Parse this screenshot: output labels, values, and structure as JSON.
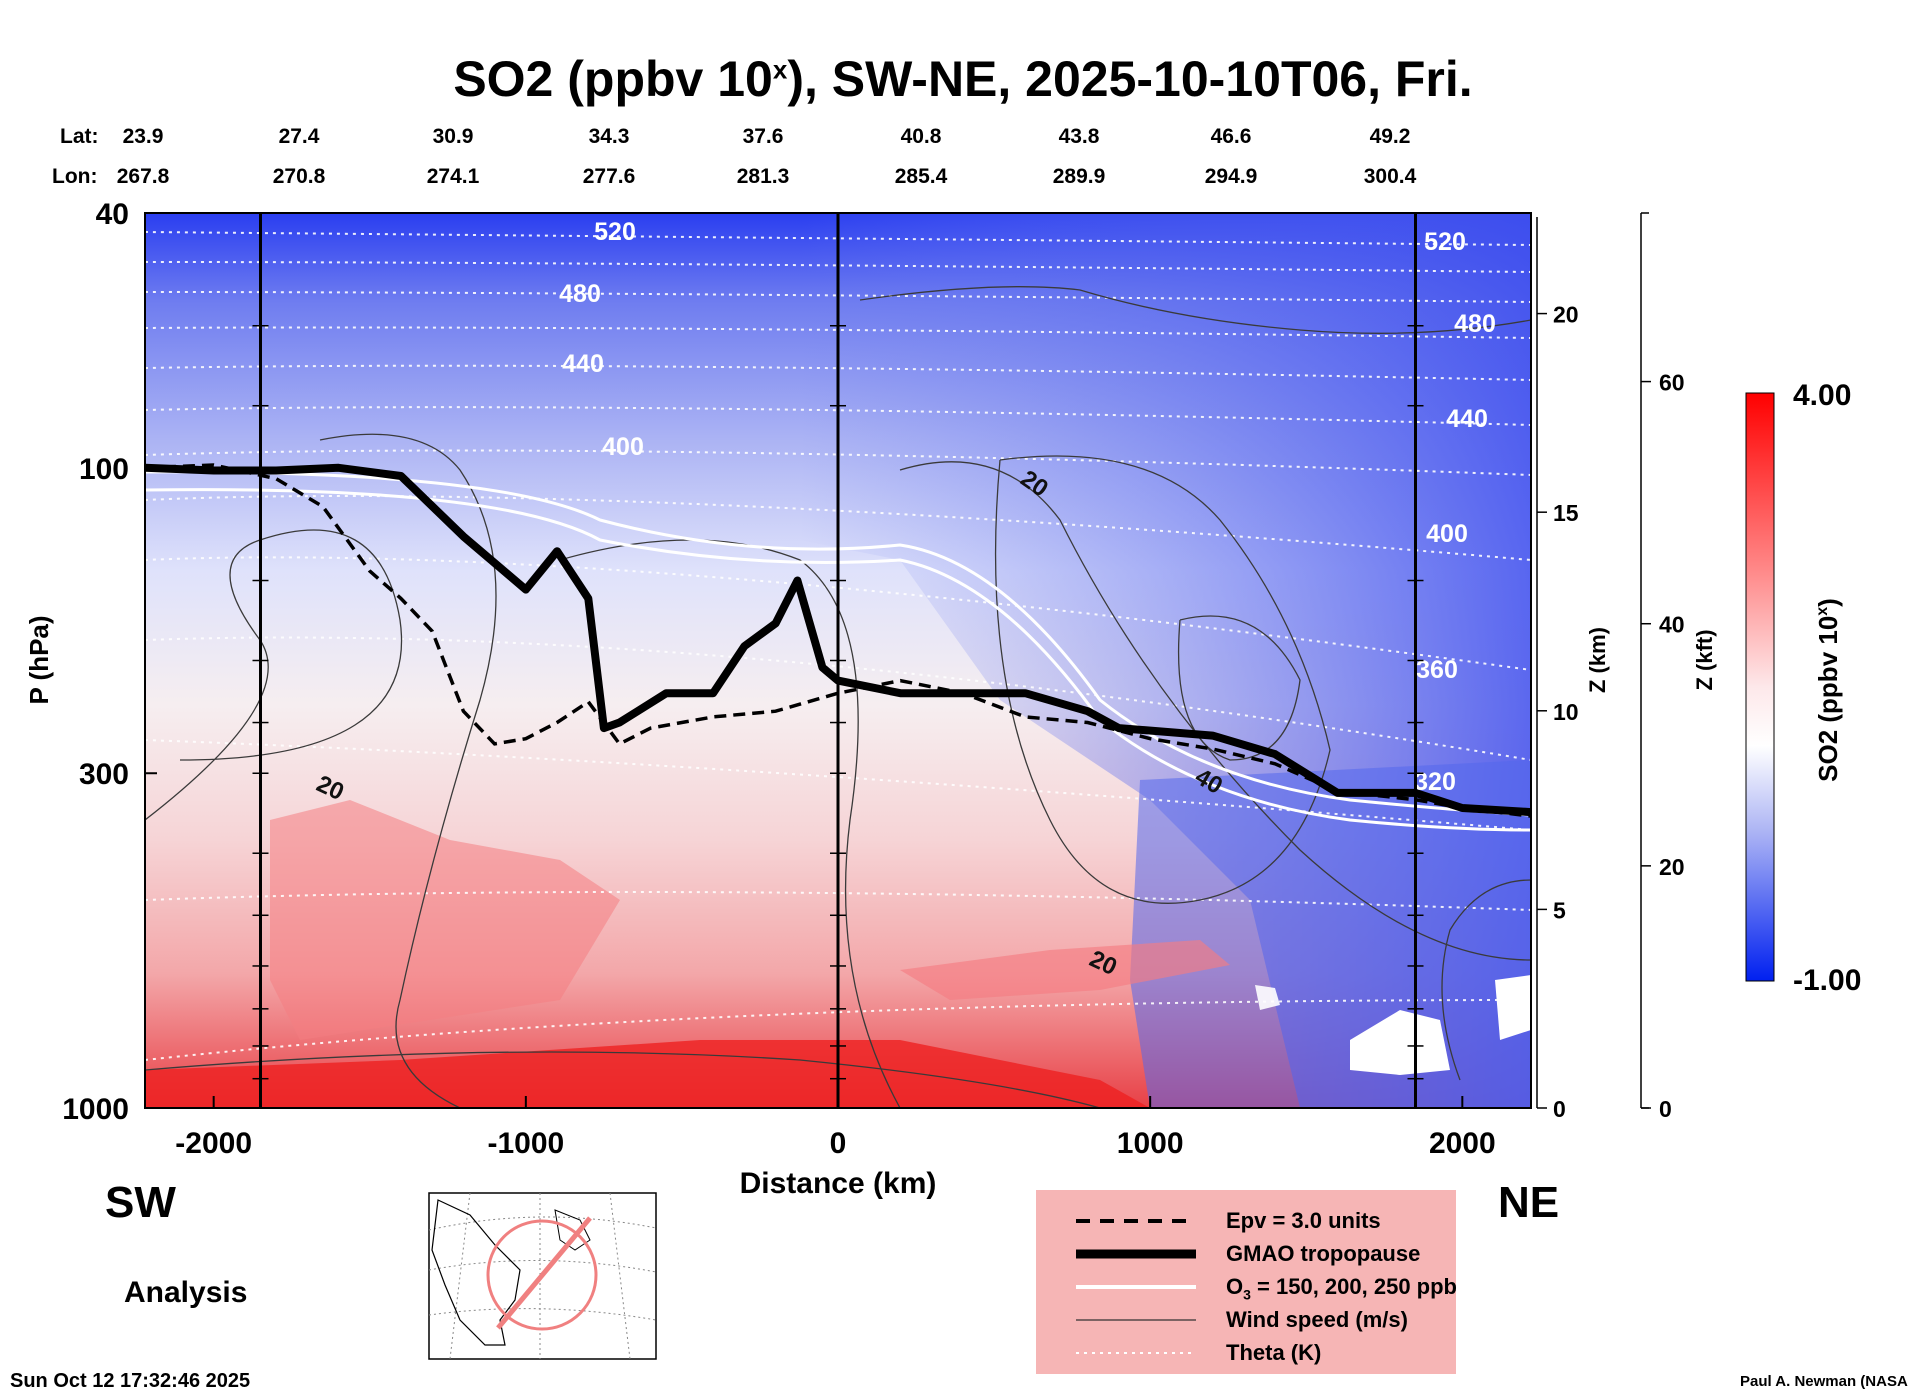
{
  "chart_data": {
    "type": "heatmap",
    "title": "SO2 (ppbv 10",
    "title_exp": "x",
    "title_rest": "), SW-NE, 2025-10-10T06, Fri.",
    "xlabel": "Distance (km)",
    "ylabel": "P (hPa)",
    "z_km_label": "Z (km)",
    "z_kft_label": "Z (kft)",
    "x_ticks": [
      "-2000",
      "-1000",
      "0",
      "1000",
      "2000"
    ],
    "x_tick_values": [
      -2000,
      -1000,
      0,
      1000,
      2000
    ],
    "xlim": [
      -2220,
      2220
    ],
    "p_ticks": [
      "40",
      "100",
      "300",
      "1000"
    ],
    "p_tick_values": [
      40,
      100,
      300,
      1000
    ],
    "ylim_hpa": [
      1000,
      40
    ],
    "z_km_ticks": [
      "0",
      "5",
      "10",
      "15",
      "20"
    ],
    "z_kft_ticks": [
      "0",
      "20",
      "40",
      "60"
    ],
    "lat_label": "Lat:",
    "lon_label": "Lon:",
    "lat_values": [
      "23.9",
      "27.4",
      "30.9",
      "34.3",
      "37.6",
      "40.8",
      "43.8",
      "46.6",
      "49.2"
    ],
    "lon_values": [
      "267.8",
      "270.8",
      "274.1",
      "277.6",
      "281.3",
      "285.4",
      "289.9",
      "294.9",
      "300.4"
    ],
    "section_lines_km": [
      -1850,
      0,
      1850
    ],
    "colorbar": {
      "label": "SO2 (ppbv 10",
      "label_exp": "x",
      "label_end": ")",
      "max": "4.00",
      "min": "-1.00",
      "min_color": "#0020f0",
      "mid_color": "#ffffff",
      "max_color": "#ff0000"
    },
    "theta_labels": [
      "520",
      "480",
      "440",
      "400",
      "520",
      "480",
      "440",
      "400",
      "360",
      "320"
    ],
    "wind_labels": [
      "20",
      "20",
      "20",
      "40"
    ],
    "tropopause_pressure_hpa": [
      [
        -2220,
        100
      ],
      [
        -2000,
        101
      ],
      [
        -1800,
        101
      ],
      [
        -1600,
        100
      ],
      [
        -1400,
        103
      ],
      [
        -1200,
        128
      ],
      [
        -1000,
        155
      ],
      [
        -900,
        135
      ],
      [
        -800,
        160
      ],
      [
        -750,
        255
      ],
      [
        -700,
        250
      ],
      [
        -550,
        225
      ],
      [
        -400,
        225
      ],
      [
        -300,
        190
      ],
      [
        -200,
        175
      ],
      [
        -130,
        150
      ],
      [
        -50,
        205
      ],
      [
        0,
        215
      ],
      [
        200,
        225
      ],
      [
        600,
        225
      ],
      [
        800,
        240
      ],
      [
        900,
        255
      ],
      [
        1200,
        262
      ],
      [
        1400,
        280
      ],
      [
        1600,
        322
      ],
      [
        1850,
        322
      ],
      [
        2000,
        340
      ],
      [
        2220,
        345
      ]
    ],
    "epv_pressure_hpa": [
      [
        -2220,
        100
      ],
      [
        -2000,
        99
      ],
      [
        -1800,
        104
      ],
      [
        -1650,
        115
      ],
      [
        -1500,
        145
      ],
      [
        -1400,
        160
      ],
      [
        -1300,
        180
      ],
      [
        -1200,
        240
      ],
      [
        -1100,
        270
      ],
      [
        -1000,
        265
      ],
      [
        -900,
        250
      ],
      [
        -800,
        232
      ],
      [
        -700,
        270
      ],
      [
        -600,
        255
      ],
      [
        -400,
        245
      ],
      [
        -200,
        240
      ],
      [
        0,
        225
      ],
      [
        200,
        215
      ],
      [
        400,
        225
      ],
      [
        600,
        245
      ],
      [
        800,
        250
      ],
      [
        1000,
        265
      ],
      [
        1200,
        275
      ],
      [
        1400,
        290
      ],
      [
        1600,
        320
      ],
      [
        1850,
        330
      ],
      [
        2000,
        340
      ],
      [
        2220,
        350
      ]
    ],
    "legend": {
      "epv": "Epv = 3.0 units",
      "tropopause": "GMAO tropopause",
      "o3_prefix": "O",
      "o3_sub": "3",
      "o3_rest": " = 150, 200, 250 ppb",
      "wind": "Wind speed (m/s)",
      "theta": "Theta (K)"
    }
  },
  "labels": {
    "sw": "SW",
    "ne": "NE",
    "analysis": "Analysis",
    "timestamp": "Sun Oct 12 17:32:46 2025",
    "credit": "Paul A. Newman (NASA"
  }
}
